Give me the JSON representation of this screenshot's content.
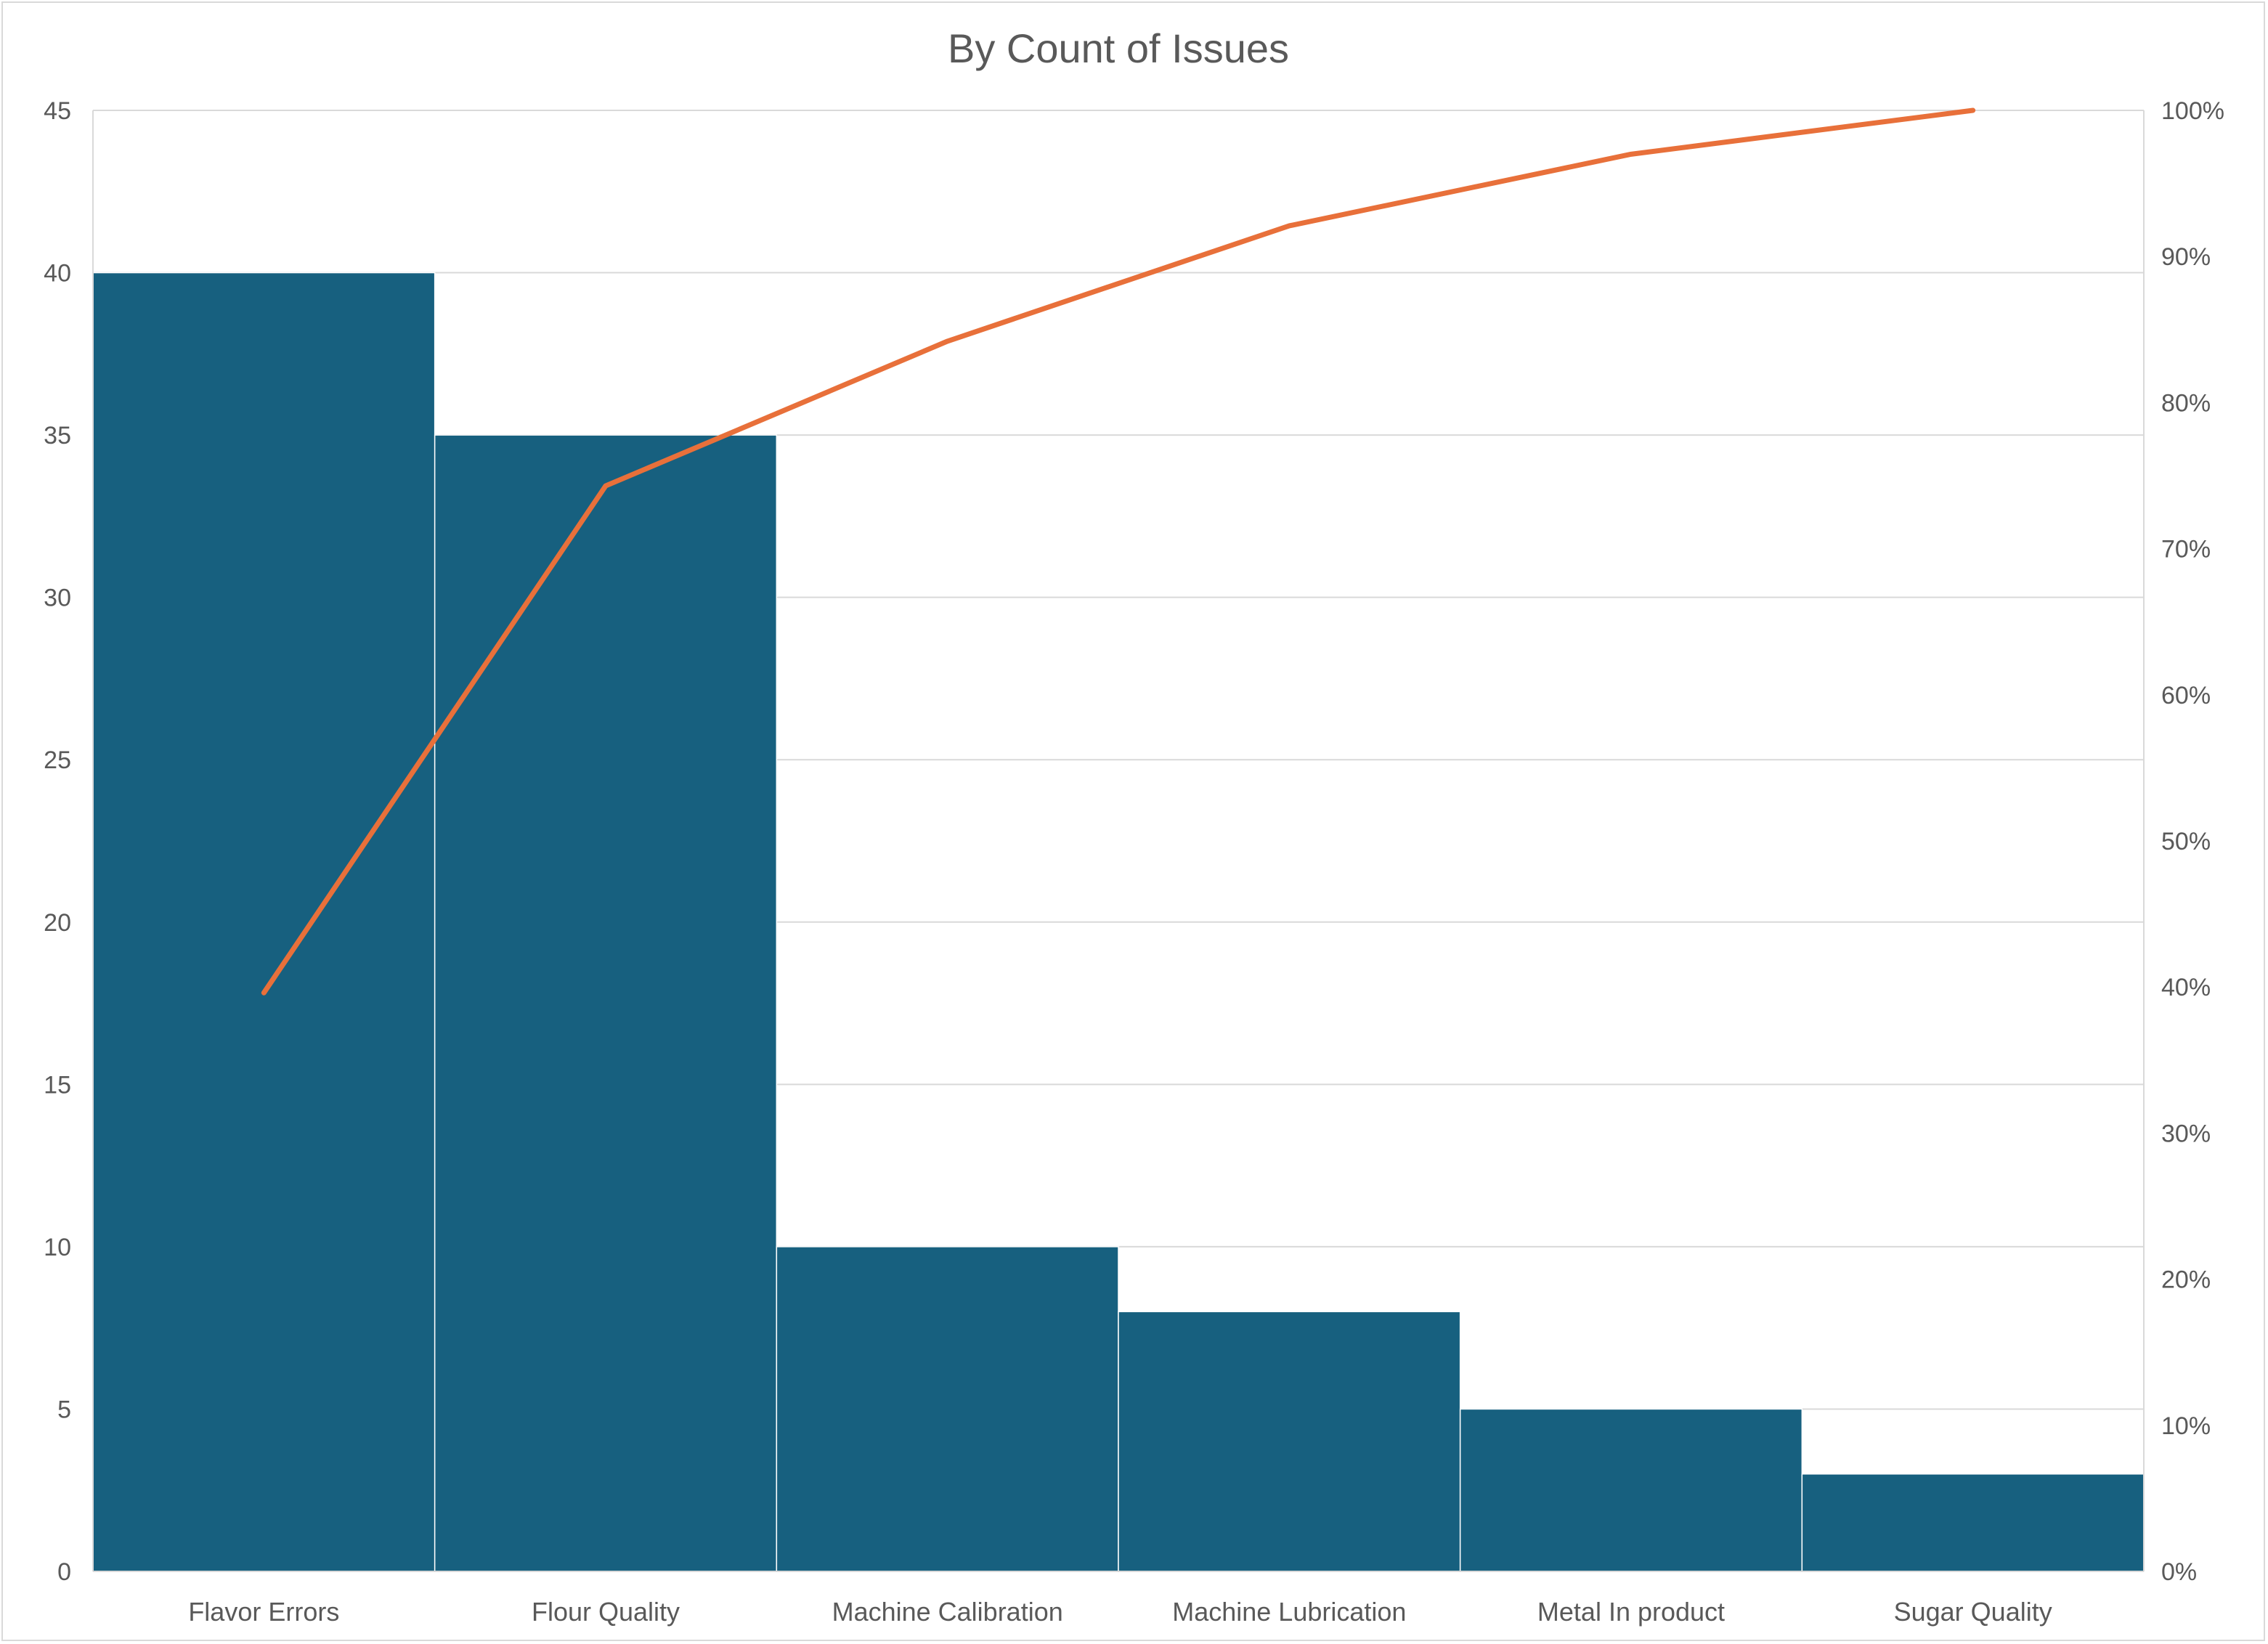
{
  "chart_data": {
    "type": "bar",
    "title": "By Count of Issues",
    "categories": [
      "Flavor Errors",
      "Flour Quality",
      "Machine Calibration",
      "Machine Lubrication",
      "Metal In product",
      "Sugar Quality"
    ],
    "series": [
      {
        "type": "bar",
        "values": [
          40,
          35,
          10,
          8,
          5,
          3
        ],
        "color": "#17607f"
      },
      {
        "type": "line",
        "axis": "right",
        "values": [
          39.6,
          74.3,
          84.2,
          92.1,
          97.0,
          100.0
        ],
        "color": "#e8703a"
      }
    ],
    "y_left": {
      "min": 0,
      "max": 45,
      "step": 5,
      "tick_labels": [
        "0",
        "5",
        "10",
        "15",
        "20",
        "25",
        "30",
        "35",
        "40",
        "45"
      ]
    },
    "y_right": {
      "min": 0,
      "max": 100,
      "step": 10,
      "tick_labels": [
        "0%",
        "10%",
        "20%",
        "30%",
        "40%",
        "50%",
        "60%",
        "70%",
        "80%",
        "90%",
        "100%"
      ]
    },
    "grid": true,
    "legend": "none",
    "colors": {
      "grid": "#d9d9d9",
      "text": "#595959"
    }
  }
}
